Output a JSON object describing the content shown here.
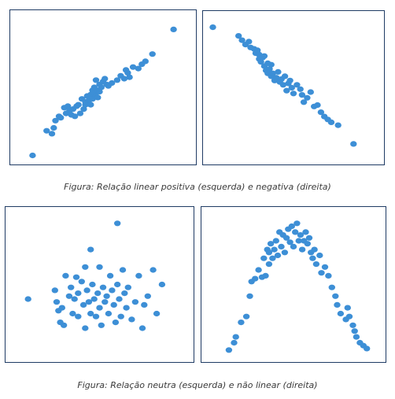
{
  "captions": {
    "top": "Figura: Relação linear positiva (esquerda) e negativa (direita)",
    "bottom": "Figura: Relação neutra (esquerda) e não linear (direita)"
  },
  "colors": {
    "point": "#3d8fd6",
    "border": "#1f3b64"
  },
  "chart_data": [
    {
      "type": "scatter",
      "title": "",
      "xlim": [
        0,
        100
      ],
      "ylim": [
        0,
        100
      ],
      "grid": false,
      "series": [
        {
          "x": [
            10,
            18,
            21,
            22,
            23,
            25,
            26,
            28,
            29,
            30,
            31,
            32,
            33,
            34,
            35,
            36,
            37,
            38,
            39,
            40,
            40,
            41,
            42,
            43,
            43,
            44,
            44,
            45,
            45,
            46,
            46,
            47,
            47,
            48,
            48,
            49,
            50,
            51,
            52,
            53,
            55,
            58,
            60,
            62,
            63,
            64,
            65,
            67,
            70,
            72,
            74,
            78,
            90
          ],
          "y": [
            3,
            20,
            18,
            22,
            27,
            30,
            29,
            36,
            32,
            37,
            34,
            31,
            35,
            30,
            37,
            38,
            32,
            42,
            35,
            38,
            40,
            44,
            41,
            45,
            38,
            48,
            42,
            50,
            46,
            44,
            55,
            48,
            43,
            52,
            47,
            50,
            54,
            56,
            52,
            51,
            53,
            55,
            58,
            56,
            62,
            60,
            57,
            64,
            63,
            66,
            68,
            73,
            90
          ]
        }
      ]
    },
    {
      "type": "scatter",
      "title": "",
      "xlim": [
        0,
        100
      ],
      "ylim": [
        0,
        100
      ],
      "grid": false,
      "series": [
        {
          "x": [
            3,
            18,
            20,
            22,
            24,
            25,
            27,
            28,
            29,
            30,
            30,
            31,
            32,
            33,
            33,
            34,
            35,
            35,
            36,
            37,
            37,
            38,
            39,
            40,
            41,
            42,
            43,
            44,
            45,
            46,
            47,
            48,
            49,
            50,
            52,
            54,
            55,
            56,
            58,
            60,
            62,
            64,
            66,
            68,
            70,
            72,
            76,
            85
          ],
          "y": [
            92,
            86,
            83,
            80,
            82,
            78,
            77,
            74,
            76,
            70,
            73,
            68,
            71,
            65,
            72,
            62,
            67,
            60,
            63,
            66,
            58,
            60,
            55,
            57,
            61,
            54,
            56,
            52,
            58,
            48,
            53,
            55,
            50,
            46,
            52,
            49,
            45,
            40,
            43,
            47,
            37,
            38,
            33,
            30,
            28,
            26,
            24,
            11
          ]
        }
      ]
    },
    {
      "type": "scatter",
      "title": "",
      "xlim": [
        0,
        100
      ],
      "ylim": [
        0,
        100
      ],
      "grid": false,
      "series": [
        {
          "x": [
            10,
            25,
            26,
            27,
            28,
            29,
            30,
            31,
            33,
            34,
            35,
            36,
            37,
            38,
            38,
            40,
            41,
            42,
            42,
            43,
            44,
            45,
            45,
            46,
            47,
            48,
            49,
            50,
            50,
            51,
            52,
            53,
            54,
            55,
            56,
            57,
            58,
            59,
            60,
            60,
            61,
            62,
            63,
            64,
            65,
            66,
            68,
            70,
            72,
            74,
            75,
            77,
            80,
            82,
            85
          ],
          "y": [
            40,
            46,
            38,
            32,
            24,
            34,
            22,
            56,
            42,
            48,
            30,
            40,
            55,
            28,
            44,
            52,
            36,
            62,
            20,
            46,
            38,
            74,
            30,
            50,
            40,
            28,
            44,
            34,
            62,
            22,
            48,
            38,
            42,
            30,
            56,
            46,
            36,
            24,
            50,
            92,
            40,
            28,
            60,
            44,
            34,
            48,
            26,
            38,
            56,
            20,
            36,
            42,
            60,
            30,
            50
          ]
        }
      ]
    },
    {
      "type": "scatter",
      "title": "",
      "xlim": [
        0,
        100
      ],
      "ylim": [
        0,
        100
      ],
      "grid": false,
      "series": [
        {
          "x": [
            13,
            16,
            17,
            20,
            23,
            25,
            26,
            28,
            30,
            32,
            33,
            34,
            35,
            36,
            36,
            37,
            38,
            39,
            40,
            41,
            42,
            43,
            44,
            45,
            46,
            47,
            48,
            49,
            50,
            51,
            52,
            53,
            54,
            55,
            56,
            57,
            58,
            59,
            60,
            61,
            62,
            63,
            65,
            66,
            68,
            70,
            72,
            74,
            75,
            77,
            80,
            81,
            82,
            84,
            85,
            86,
            88,
            90,
            92
          ],
          "y": [
            5,
            10,
            14,
            24,
            28,
            42,
            52,
            54,
            60,
            55,
            68,
            56,
            74,
            64,
            72,
            78,
            68,
            74,
            80,
            70,
            86,
            76,
            84,
            72,
            82,
            88,
            79,
            90,
            76,
            86,
            92,
            80,
            84,
            74,
            80,
            86,
            78,
            82,
            72,
            68,
            74,
            64,
            70,
            58,
            62,
            56,
            48,
            42,
            36,
            30,
            26,
            34,
            28,
            22,
            18,
            14,
            10,
            8,
            6
          ]
        }
      ]
    }
  ]
}
